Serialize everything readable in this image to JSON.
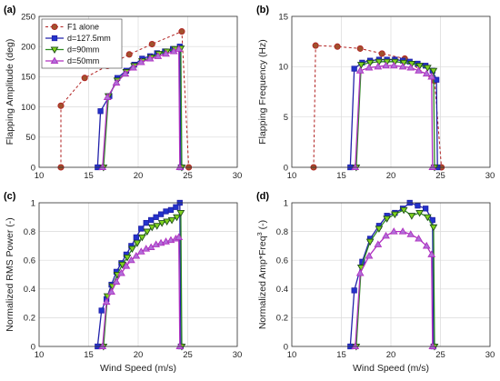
{
  "colors": {
    "f1": "#b22222",
    "f1_fill": "#a0522d",
    "d127": "#2222aa",
    "d127_fill": "#2233cc",
    "d90": "#2e8b22",
    "d90_fill": "#7fd31f",
    "d50": "#b030c0",
    "d50_fill": "#b070d8",
    "grid": "#d9d9d9",
    "axis": "#333333"
  },
  "chart_data": [
    {
      "panel": "(a)",
      "type": "line",
      "xlabel": "",
      "ylabel": "Flapping Amplitude (deg)",
      "xlim": [
        10,
        30
      ],
      "ylim": [
        0,
        250
      ],
      "xticks": [
        10,
        15,
        20,
        25,
        30
      ],
      "yticks": [
        0,
        50,
        100,
        150,
        200,
        250
      ],
      "grid": true,
      "legend": {
        "placement": "top-left",
        "entries": [
          "F1 alone",
          "d=127.5mm",
          "d=90mm",
          "d=50mm"
        ]
      },
      "series": [
        {
          "name": "F1 alone",
          "marker": "circle",
          "dashed": true,
          "x": [
            12.2,
            12.2,
            14.6,
            16.9,
            19.1,
            21.4,
            24.4,
            25.1
          ],
          "y": [
            0,
            102,
            148,
            168,
            187,
            204,
            225,
            0
          ]
        },
        {
          "name": "d=127.5mm",
          "marker": "square",
          "dashed": false,
          "x": [
            15.9,
            16.2,
            17.1,
            17.9,
            18.8,
            19.6,
            20.4,
            21.2,
            21.9,
            22.7,
            23.5,
            24.2,
            24.3
          ],
          "y": [
            0,
            93,
            118,
            148,
            160,
            170,
            180,
            184,
            189,
            192,
            196,
            200,
            0
          ]
        },
        {
          "name": "d=90mm",
          "marker": "triangle-down",
          "dashed": false,
          "x": [
            16.5,
            17.0,
            17.9,
            18.8,
            19.6,
            20.4,
            21.3,
            22.1,
            22.9,
            23.7,
            24.3,
            24.4
          ],
          "y": [
            0,
            118,
            144,
            158,
            168,
            176,
            182,
            188,
            192,
            196,
            197,
            0
          ]
        },
        {
          "name": "d=50mm",
          "marker": "triangle-up",
          "dashed": false,
          "x": [
            16.4,
            16.9,
            17.8,
            18.7,
            19.5,
            20.3,
            21.2,
            22.0,
            22.8,
            23.6,
            24.1,
            24.2
          ],
          "y": [
            0,
            116,
            140,
            155,
            165,
            174,
            180,
            184,
            188,
            192,
            196,
            0
          ]
        }
      ]
    },
    {
      "panel": "(b)",
      "type": "line",
      "xlabel": "",
      "ylabel": "Flapping Frequency (Hz)",
      "xlim": [
        10,
        30
      ],
      "ylim": [
        0,
        15
      ],
      "xticks": [
        10,
        15,
        20,
        25,
        30
      ],
      "yticks": [
        0,
        5,
        10,
        15
      ],
      "grid": true,
      "series": [
        {
          "name": "F1 alone",
          "marker": "circle",
          "dashed": true,
          "x": [
            12.2,
            12.4,
            14.6,
            16.9,
            19.1,
            21.4,
            24.4,
            25.1
          ],
          "y": [
            0,
            12.1,
            12.0,
            11.8,
            11.3,
            10.8,
            8.6,
            0
          ]
        },
        {
          "name": "d=127.5mm",
          "marker": "square",
          "dashed": false,
          "x": [
            15.9,
            16.3,
            17.1,
            17.9,
            18.8,
            19.6,
            20.4,
            21.2,
            21.9,
            22.7,
            23.5,
            24.2,
            24.6,
            24.7
          ],
          "y": [
            0,
            9.8,
            10.4,
            10.6,
            10.7,
            10.7,
            10.7,
            10.6,
            10.5,
            10.3,
            10.1,
            9.6,
            8.7,
            0
          ]
        },
        {
          "name": "d=90mm",
          "marker": "triangle-down",
          "dashed": false,
          "x": [
            16.5,
            17.0,
            17.9,
            18.8,
            19.6,
            20.4,
            21.3,
            22.1,
            22.9,
            23.7,
            24.3,
            24.4
          ],
          "y": [
            0,
            10.2,
            10.4,
            10.5,
            10.5,
            10.5,
            10.4,
            10.3,
            10.1,
            9.9,
            9.6,
            0
          ]
        },
        {
          "name": "d=50mm",
          "marker": "triangle-up",
          "dashed": false,
          "x": [
            16.4,
            16.9,
            17.8,
            18.7,
            19.5,
            20.3,
            21.2,
            22.0,
            22.8,
            23.6,
            24.1,
            24.2
          ],
          "y": [
            0,
            9.6,
            9.9,
            10.0,
            10.1,
            10.1,
            10.0,
            9.9,
            9.6,
            9.3,
            9.0,
            0
          ]
        }
      ]
    },
    {
      "panel": "(c)",
      "type": "line",
      "xlabel": "Wind Speed (m/s)",
      "ylabel": "Normalized RMS Power (-)",
      "xlim": [
        10,
        30
      ],
      "ylim": [
        0,
        1
      ],
      "xticks": [
        10,
        15,
        20,
        25,
        30
      ],
      "yticks": [
        0,
        0.2,
        0.4,
        0.6,
        0.8,
        1
      ],
      "ytick_labels": [
        "0",
        "0.2",
        "0.4",
        "0.6",
        "0.8",
        "1"
      ],
      "grid": true,
      "series": [
        {
          "name": "d=127.5mm",
          "marker": "square",
          "dashed": false,
          "x": [
            15.9,
            16.3,
            16.8,
            17.3,
            17.8,
            18.3,
            18.8,
            19.3,
            19.8,
            20.3,
            20.8,
            21.3,
            21.8,
            22.3,
            22.8,
            23.3,
            23.8,
            24.2,
            24.3
          ],
          "y": [
            0,
            0.25,
            0.33,
            0.43,
            0.52,
            0.58,
            0.64,
            0.7,
            0.76,
            0.82,
            0.86,
            0.88,
            0.9,
            0.92,
            0.94,
            0.95,
            0.97,
            1.0,
            0
          ]
        },
        {
          "name": "d=90mm",
          "marker": "triangle-down",
          "dashed": false,
          "x": [
            16.5,
            16.9,
            17.4,
            17.9,
            18.4,
            18.9,
            19.4,
            19.9,
            20.4,
            20.9,
            21.4,
            21.9,
            22.4,
            22.9,
            23.4,
            23.9,
            24.3,
            24.4
          ],
          "y": [
            0,
            0.35,
            0.42,
            0.5,
            0.57,
            0.62,
            0.68,
            0.72,
            0.76,
            0.8,
            0.83,
            0.84,
            0.86,
            0.87,
            0.88,
            0.9,
            0.93,
            0
          ]
        },
        {
          "name": "d=50mm",
          "marker": "triangle-up",
          "dashed": false,
          "x": [
            16.4,
            16.8,
            17.3,
            17.8,
            18.3,
            18.8,
            19.3,
            19.8,
            20.3,
            20.8,
            21.3,
            21.8,
            22.3,
            22.8,
            23.3,
            23.8,
            24.1,
            24.2
          ],
          "y": [
            0,
            0.31,
            0.38,
            0.45,
            0.51,
            0.56,
            0.6,
            0.63,
            0.66,
            0.68,
            0.69,
            0.71,
            0.72,
            0.73,
            0.74,
            0.75,
            0.76,
            0
          ]
        }
      ]
    },
    {
      "panel": "(d)",
      "type": "line",
      "xlabel": "Wind Speed (m/s)",
      "ylabel": "Normalized Amp*Freq",
      "ylabel_sup": "3",
      "ylabel_suffix": " (-)",
      "xlim": [
        10,
        30
      ],
      "ylim": [
        0,
        1
      ],
      "xticks": [
        10,
        15,
        20,
        25,
        30
      ],
      "yticks": [
        0,
        0.2,
        0.4,
        0.6,
        0.8,
        1
      ],
      "ytick_labels": [
        "0",
        "0.2",
        "0.4",
        "0.6",
        "0.8",
        "1"
      ],
      "grid": true,
      "series": [
        {
          "name": "d=127.5mm",
          "marker": "square",
          "dashed": false,
          "x": [
            15.9,
            16.3,
            17.1,
            17.9,
            18.8,
            19.6,
            20.4,
            21.2,
            21.9,
            22.7,
            23.5,
            24.2,
            24.3
          ],
          "y": [
            0,
            0.39,
            0.59,
            0.75,
            0.84,
            0.91,
            0.93,
            0.96,
            1.0,
            0.98,
            0.96,
            0.88,
            0
          ]
        },
        {
          "name": "d=90mm",
          "marker": "triangle-down",
          "dashed": false,
          "x": [
            16.5,
            17.0,
            17.9,
            18.8,
            19.6,
            20.4,
            21.3,
            22.1,
            22.9,
            23.7,
            24.3,
            24.4
          ],
          "y": [
            0,
            0.55,
            0.73,
            0.82,
            0.89,
            0.92,
            0.95,
            0.91,
            0.93,
            0.9,
            0.83,
            0
          ]
        },
        {
          "name": "d=50mm",
          "marker": "triangle-up",
          "dashed": false,
          "x": [
            16.4,
            16.9,
            17.8,
            18.7,
            19.5,
            20.3,
            21.2,
            22.0,
            22.8,
            23.6,
            24.1,
            24.2
          ],
          "y": [
            0,
            0.51,
            0.63,
            0.71,
            0.77,
            0.8,
            0.8,
            0.78,
            0.75,
            0.7,
            0.64,
            0
          ]
        }
      ]
    }
  ]
}
